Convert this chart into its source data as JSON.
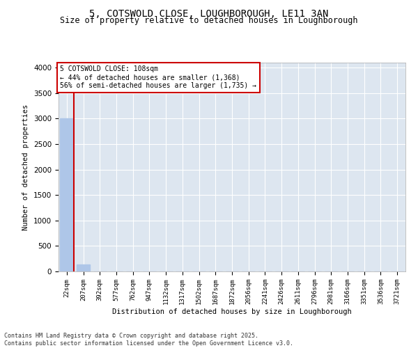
{
  "title_line1": "5, COTSWOLD CLOSE, LOUGHBOROUGH, LE11 3AN",
  "title_line2": "Size of property relative to detached houses in Loughborough",
  "xlabel": "Distribution of detached houses by size in Loughborough",
  "ylabel": "Number of detached properties",
  "categories": [
    "22sqm",
    "207sqm",
    "392sqm",
    "577sqm",
    "762sqm",
    "947sqm",
    "1132sqm",
    "1317sqm",
    "1502sqm",
    "1687sqm",
    "1872sqm",
    "2056sqm",
    "2241sqm",
    "2426sqm",
    "2611sqm",
    "2796sqm",
    "2981sqm",
    "3166sqm",
    "3351sqm",
    "3536sqm",
    "3721sqm"
  ],
  "values": [
    3000,
    140,
    0,
    0,
    0,
    0,
    0,
    0,
    0,
    0,
    0,
    0,
    0,
    0,
    0,
    0,
    0,
    0,
    0,
    0,
    0
  ],
  "bar_color": "#aec6e8",
  "annotation_text": "5 COTSWOLD CLOSE: 108sqm\n← 44% of detached houses are smaller (1,368)\n56% of semi-detached houses are larger (1,735) →",
  "annotation_box_color": "#ffffff",
  "annotation_box_edgecolor": "#cc0000",
  "vline_color": "#cc0000",
  "ylim": [
    0,
    4100
  ],
  "yticks": [
    0,
    500,
    1000,
    1500,
    2000,
    2500,
    3000,
    3500,
    4000
  ],
  "background_color": "#dde6f0",
  "grid_color": "#ffffff",
  "footer_line1": "Contains HM Land Registry data © Crown copyright and database right 2025.",
  "footer_line2": "Contains public sector information licensed under the Open Government Licence v3.0."
}
